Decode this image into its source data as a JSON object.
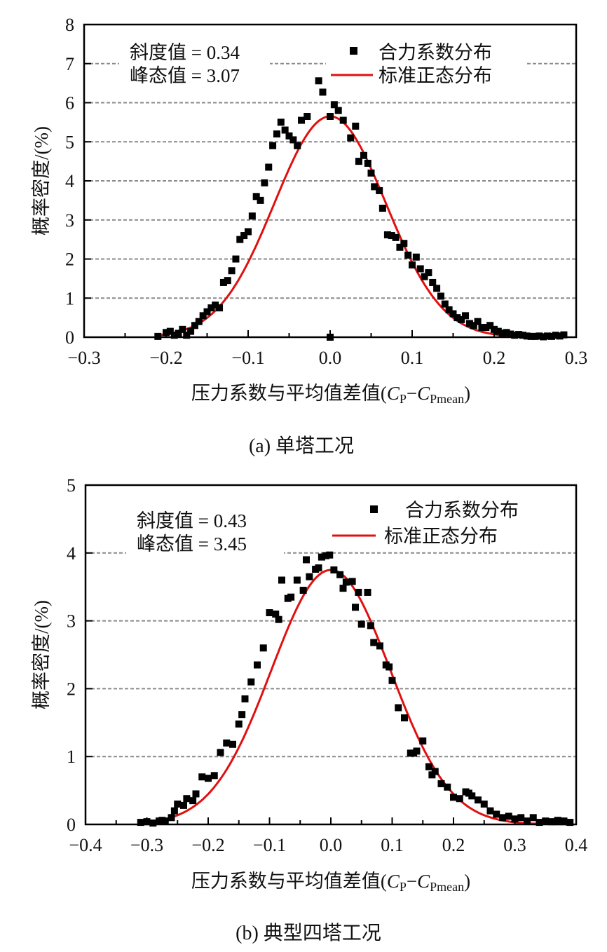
{
  "chart_data": [
    {
      "type": "scatter",
      "panel": "a",
      "caption": "(a)  单塔工况",
      "xlabel_prefix": "压力系数与平均值差值(",
      "xlabel_c1": "C",
      "xlabel_s1": "P",
      "xlabel_dash": "−",
      "xlabel_c2": "C",
      "xlabel_s2": "Pmean",
      "xlabel_suffix": ")",
      "ylabel": "概率密度/(%)",
      "xlim": [
        -0.3,
        0.3
      ],
      "ylim": [
        0,
        8
      ],
      "xticks": [
        -0.3,
        -0.2,
        -0.1,
        0.0,
        0.1,
        0.2,
        0.3
      ],
      "xtick_labels": [
        "−0.3",
        "−0.2",
        "−0.1",
        "0.0",
        "0.1",
        "0.2",
        "0.3"
      ],
      "yticks": [
        0,
        1,
        2,
        3,
        4,
        5,
        6,
        7,
        8
      ],
      "ytick_labels": [
        "0",
        "1",
        "2",
        "3",
        "4",
        "5",
        "6",
        "7",
        "8"
      ],
      "grid": "horizontal dashed",
      "annotations": {
        "skew": "斜度值 = 0.34",
        "kurt": "峰态值 = 3.07"
      },
      "legend": {
        "placement": "top-right",
        "scatter": "合力系数分布",
        "line": "标准正态分布"
      },
      "colors": {
        "scatter": "#000000",
        "line": "#e01010",
        "grid": "#8a8a8a"
      },
      "normal_fit": {
        "mean": 0.0,
        "sigma": 0.068,
        "peak": 5.65,
        "range": [
          -0.21,
          0.28
        ]
      },
      "points": [
        [
          -0.21,
          0.02
        ],
        [
          -0.2,
          0.12
        ],
        [
          -0.195,
          0.15
        ],
        [
          -0.19,
          0.05
        ],
        [
          -0.185,
          0.1
        ],
        [
          -0.18,
          0.2
        ],
        [
          -0.175,
          0.05
        ],
        [
          -0.17,
          0.15
        ],
        [
          -0.165,
          0.3
        ],
        [
          -0.16,
          0.4
        ],
        [
          -0.155,
          0.55
        ],
        [
          -0.15,
          0.65
        ],
        [
          -0.145,
          0.75
        ],
        [
          -0.14,
          0.82
        ],
        [
          -0.135,
          0.75
        ],
        [
          -0.13,
          1.4
        ],
        [
          -0.125,
          1.45
        ],
        [
          -0.12,
          1.7
        ],
        [
          -0.115,
          2.0
        ],
        [
          -0.11,
          2.5
        ],
        [
          -0.105,
          2.6
        ],
        [
          -0.1,
          2.7
        ],
        [
          -0.095,
          3.1
        ],
        [
          -0.09,
          3.6
        ],
        [
          -0.085,
          3.5
        ],
        [
          -0.08,
          3.95
        ],
        [
          -0.075,
          4.35
        ],
        [
          -0.07,
          4.9
        ],
        [
          -0.065,
          5.2
        ],
        [
          -0.06,
          5.5
        ],
        [
          -0.055,
          5.3
        ],
        [
          -0.05,
          5.15
        ],
        [
          -0.045,
          5.05
        ],
        [
          -0.04,
          4.9
        ],
        [
          -0.035,
          5.55
        ],
        [
          -0.028,
          5.65
        ],
        [
          -0.014,
          6.56
        ],
        [
          -0.009,
          6.27
        ],
        [
          0.0,
          5.65
        ],
        [
          0.005,
          5.95
        ],
        [
          0.01,
          5.8
        ],
        [
          0.016,
          5.55
        ],
        [
          0.025,
          5.1
        ],
        [
          0.031,
          5.4
        ],
        [
          0.035,
          4.5
        ],
        [
          0.041,
          4.65
        ],
        [
          0.046,
          4.45
        ],
        [
          0.05,
          4.2
        ],
        [
          0.054,
          3.85
        ],
        [
          0.06,
          3.75
        ],
        [
          0.064,
          3.3
        ],
        [
          0.07,
          2.62
        ],
        [
          0.075,
          2.6
        ],
        [
          0.08,
          2.55
        ],
        [
          0.085,
          2.3
        ],
        [
          0.09,
          2.4
        ],
        [
          0.095,
          2.1
        ],
        [
          0.1,
          1.85
        ],
        [
          0.105,
          2.05
        ],
        [
          0.11,
          1.75
        ],
        [
          0.115,
          1.55
        ],
        [
          0.12,
          1.65
        ],
        [
          0.125,
          1.4
        ],
        [
          0.13,
          1.25
        ],
        [
          0.135,
          1.05
        ],
        [
          0.14,
          0.85
        ],
        [
          0.145,
          0.7
        ],
        [
          0.15,
          0.6
        ],
        [
          0.155,
          0.5
        ],
        [
          0.16,
          0.45
        ],
        [
          0.165,
          0.55
        ],
        [
          0.17,
          0.35
        ],
        [
          0.175,
          0.3
        ],
        [
          0.18,
          0.4
        ],
        [
          0.185,
          0.25
        ],
        [
          0.19,
          0.25
        ],
        [
          0.195,
          0.3
        ],
        [
          0.2,
          0.2
        ],
        [
          0.205,
          0.15
        ],
        [
          0.21,
          0.1
        ],
        [
          0.215,
          0.12
        ],
        [
          0.22,
          0.08
        ],
        [
          0.225,
          0.05
        ],
        [
          0.23,
          0.07
        ],
        [
          0.235,
          0.05
        ],
        [
          0.24,
          0.03
        ],
        [
          0.245,
          0.02
        ],
        [
          0.25,
          0.02
        ],
        [
          0.255,
          0.03
        ],
        [
          0.26,
          0.01
        ],
        [
          0.265,
          0.03
        ],
        [
          0.27,
          0.02
        ],
        [
          0.275,
          0.05
        ],
        [
          0.28,
          0.03
        ],
        [
          0.285,
          0.06
        ],
        [
          0.0,
          0.0
        ]
      ]
    },
    {
      "type": "scatter",
      "panel": "b",
      "caption": "(b)  典型四塔工况",
      "xlabel_prefix": "压力系数与平均值差值(",
      "xlabel_c1": "C",
      "xlabel_s1": "P",
      "xlabel_dash": "−",
      "xlabel_c2": "C",
      "xlabel_s2": "Pmean",
      "xlabel_suffix": ")",
      "ylabel": "概率密度/(%)",
      "xlim": [
        -0.4,
        0.4
      ],
      "ylim": [
        0,
        5
      ],
      "xticks": [
        -0.4,
        -0.3,
        -0.2,
        -0.1,
        0.0,
        0.1,
        0.2,
        0.3,
        0.4
      ],
      "xtick_labels": [
        "−0.4",
        "−0.3",
        "−0.2",
        "−0.1",
        "0.0",
        "0.1",
        "0.2",
        "0.3",
        "0.4"
      ],
      "yticks": [
        0,
        1,
        2,
        3,
        4,
        5
      ],
      "ytick_labels": [
        "0",
        "1",
        "2",
        "3",
        "4",
        "5"
      ],
      "grid": "horizontal dashed",
      "annotations": {
        "skew": "斜度值 = 0.43",
        "kurt": "峰态值 = 3.45"
      },
      "legend": {
        "placement": "top-right",
        "scatter": "合力系数分布",
        "line": "标准正态分布"
      },
      "colors": {
        "scatter": "#000000",
        "line": "#e01010",
        "grid": "#8a8a8a"
      },
      "normal_fit": {
        "mean": 0.0,
        "sigma": 0.097,
        "peak": 3.75,
        "range": [
          -0.31,
          0.39
        ]
      },
      "points": [
        [
          -0.31,
          0.03
        ],
        [
          -0.3,
          0.04
        ],
        [
          -0.29,
          0.02
        ],
        [
          -0.28,
          0.05
        ],
        [
          -0.275,
          0.06
        ],
        [
          -0.27,
          0.05
        ],
        [
          -0.26,
          0.1
        ],
        [
          -0.255,
          0.2
        ],
        [
          -0.25,
          0.3
        ],
        [
          -0.24,
          0.28
        ],
        [
          -0.235,
          0.38
        ],
        [
          -0.225,
          0.35
        ],
        [
          -0.22,
          0.45
        ],
        [
          -0.21,
          0.7
        ],
        [
          -0.2,
          0.68
        ],
        [
          -0.19,
          0.72
        ],
        [
          -0.18,
          1.06
        ],
        [
          -0.17,
          1.2
        ],
        [
          -0.16,
          1.18
        ],
        [
          -0.15,
          1.48
        ],
        [
          -0.145,
          1.62
        ],
        [
          -0.14,
          1.85
        ],
        [
          -0.13,
          2.1
        ],
        [
          -0.12,
          2.35
        ],
        [
          -0.11,
          2.6
        ],
        [
          -0.1,
          3.12
        ],
        [
          -0.09,
          3.1
        ],
        [
          -0.085,
          3.02
        ],
        [
          -0.08,
          3.6
        ],
        [
          -0.07,
          3.33
        ],
        [
          -0.065,
          3.35
        ],
        [
          -0.055,
          3.6
        ],
        [
          -0.045,
          3.45
        ],
        [
          -0.04,
          3.9
        ],
        [
          -0.035,
          3.65
        ],
        [
          -0.025,
          3.76
        ],
        [
          -0.02,
          3.78
        ],
        [
          -0.015,
          3.94
        ],
        [
          -0.008,
          3.96
        ],
        [
          -0.002,
          3.97
        ],
        [
          0.005,
          3.75
        ],
        [
          0.015,
          3.68
        ],
        [
          0.02,
          3.48
        ],
        [
          0.025,
          3.57
        ],
        [
          0.035,
          3.58
        ],
        [
          0.04,
          3.2
        ],
        [
          0.045,
          3.42
        ],
        [
          0.05,
          2.95
        ],
        [
          0.06,
          3.42
        ],
        [
          0.065,
          2.93
        ],
        [
          0.07,
          2.68
        ],
        [
          0.08,
          2.63
        ],
        [
          0.09,
          2.35
        ],
        [
          0.095,
          2.32
        ],
        [
          0.1,
          2.12
        ],
        [
          0.11,
          1.72
        ],
        [
          0.12,
          1.57
        ],
        [
          0.13,
          1.05
        ],
        [
          0.135,
          1.05
        ],
        [
          0.14,
          1.08
        ],
        [
          0.15,
          1.23
        ],
        [
          0.16,
          0.85
        ],
        [
          0.165,
          0.73
        ],
        [
          0.17,
          0.78
        ],
        [
          0.18,
          0.6
        ],
        [
          0.19,
          0.55
        ],
        [
          0.2,
          0.4
        ],
        [
          0.21,
          0.38
        ],
        [
          0.22,
          0.48
        ],
        [
          0.225,
          0.46
        ],
        [
          0.23,
          0.42
        ],
        [
          0.24,
          0.36
        ],
        [
          0.25,
          0.3
        ],
        [
          0.26,
          0.2
        ],
        [
          0.27,
          0.15
        ],
        [
          0.28,
          0.1
        ],
        [
          0.29,
          0.12
        ],
        [
          0.3,
          0.08
        ],
        [
          0.31,
          0.1
        ],
        [
          0.32,
          0.05
        ],
        [
          0.33,
          0.1
        ],
        [
          0.34,
          0.03
        ],
        [
          0.35,
          0.05
        ],
        [
          0.36,
          0.04
        ],
        [
          0.37,
          0.06
        ],
        [
          0.38,
          0.05
        ],
        [
          0.39,
          0.03
        ]
      ]
    }
  ]
}
